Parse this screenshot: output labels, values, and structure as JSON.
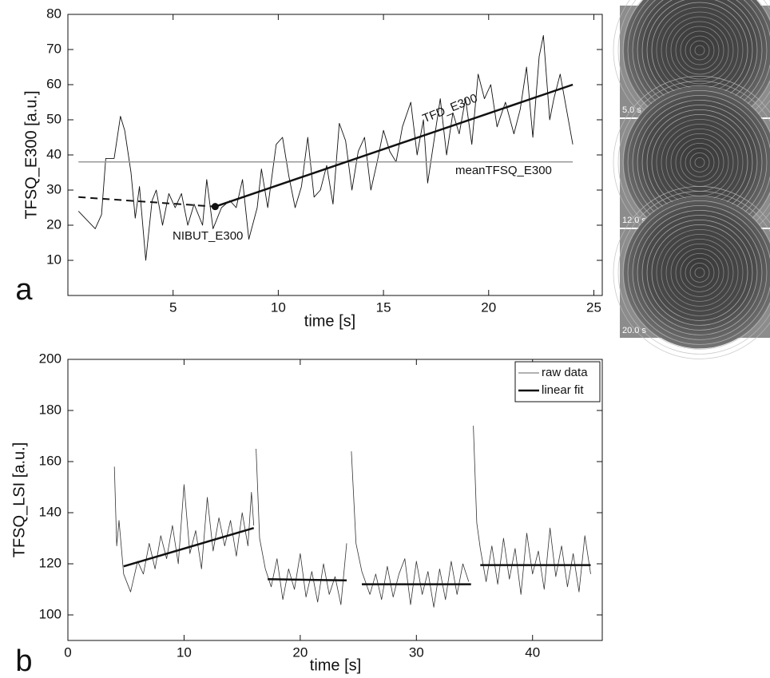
{
  "chart_data": [
    {
      "type": "line",
      "panel": "a",
      "x_label": "time [s]",
      "y_label": "TFSQ_E300 [a.u.]",
      "xlim": [
        0,
        25.4
      ],
      "ylim": [
        0,
        80
      ],
      "xticks": [
        5,
        10,
        15,
        20,
        25
      ],
      "yticks": [
        10,
        20,
        30,
        40,
        50,
        60,
        70,
        80
      ],
      "annotations": [
        "TFD_E300",
        "meanTFSQ_E300",
        "NIBUT_E300"
      ],
      "series": [
        {
          "color": "#111111",
          "width": 0.9,
          "x": [
            0.5,
            1.3,
            1.6,
            1.8,
            2.2,
            2.5,
            2.7,
            3.0,
            3.2,
            3.4,
            3.7,
            4.0,
            4.2,
            4.5,
            4.8,
            5.1,
            5.4,
            5.7,
            6.0,
            6.4,
            6.6,
            6.9,
            7.3,
            7.7,
            8.0,
            8.3,
            8.6,
            9.0,
            9.2,
            9.5,
            9.9,
            10.2,
            10.5,
            10.8,
            11.1,
            11.4,
            11.7,
            12.0,
            12.3,
            12.6,
            12.9,
            13.2,
            13.5,
            13.8,
            14.1,
            14.4,
            14.7,
            15.0,
            15.3,
            15.6,
            15.9,
            16.3,
            16.6,
            16.9,
            17.1,
            17.4,
            17.7,
            18.0,
            18.3,
            18.6,
            18.9,
            19.2,
            19.5,
            19.8,
            20.1,
            20.4,
            20.8,
            21.2,
            21.5,
            21.8,
            22.1,
            22.4,
            22.6,
            22.9,
            23.1,
            23.4,
            23.7,
            24.0
          ],
          "values": [
            24,
            19,
            23,
            39,
            39,
            51,
            47,
            35,
            22,
            31,
            10,
            27,
            30,
            20,
            29,
            25,
            29,
            20,
            26,
            20,
            33,
            19,
            25,
            27,
            25,
            33,
            16,
            25,
            36,
            25,
            43,
            45,
            34,
            25,
            31,
            45,
            28,
            30,
            37,
            26,
            49,
            44,
            30,
            41,
            45,
            30,
            38,
            47,
            41,
            38,
            48,
            55,
            40,
            50,
            32,
            44,
            56,
            40,
            52,
            46,
            56,
            43,
            63,
            56,
            60,
            48,
            55,
            46,
            53,
            65,
            45,
            68,
            74,
            50,
            56,
            63,
            53,
            43
          ]
        },
        {
          "color": "#999999",
          "width": 1.5,
          "x": [
            0.5,
            24
          ],
          "values": [
            38,
            38
          ]
        },
        {
          "color": "#111111",
          "width": 2,
          "dash": true,
          "x": [
            0.5,
            7
          ],
          "values": [
            28,
            25.3
          ]
        },
        {
          "color": "#111111",
          "width": 2.5,
          "x": [
            7,
            24
          ],
          "values": [
            25.3,
            60
          ]
        },
        {
          "color": "#111111",
          "marker": true,
          "x": [
            7
          ],
          "values": [
            25.3
          ]
        }
      ]
    },
    {
      "type": "line",
      "panel": "b",
      "x_label": "time [s]",
      "y_label": "TFSQ_LSI [a.u.]",
      "xlim": [
        0,
        46
      ],
      "ylim": [
        90,
        200
      ],
      "xticks": [
        0,
        10,
        20,
        30,
        40
      ],
      "yticks": [
        100,
        120,
        140,
        160,
        180,
        200
      ],
      "legend": "upper right",
      "series": [
        {
          "name": "raw data",
          "color": "#333333",
          "width": 0.8,
          "x": [
            4,
            4.2,
            4.4,
            4.8,
            5.4,
            6,
            6.5,
            7,
            7.5,
            8,
            8.5,
            9,
            9.5,
            10,
            10.5,
            11,
            11.5,
            12,
            12.5,
            13,
            13.5,
            14,
            14.5,
            15,
            15.5,
            15.8,
            16,
            16.1,
            16.2,
            16.5,
            17,
            17.5,
            18,
            18.5,
            19,
            19.5,
            20,
            20.5,
            21,
            21.5,
            22,
            22.5,
            23,
            23.5,
            24,
            24.2,
            24.4,
            24.8,
            25.3,
            26,
            26.5,
            27,
            27.5,
            28,
            28.5,
            29,
            29.5,
            30,
            30.5,
            31,
            31.5,
            32,
            32.5,
            33,
            33.5,
            34,
            34.5,
            34.7,
            34.9,
            35.2,
            35.5,
            36,
            36.5,
            37,
            37.5,
            38,
            38.5,
            39,
            39.5,
            40,
            40.5,
            41,
            41.5,
            42,
            42.5,
            43,
            43.5,
            44,
            44.5,
            45
          ],
          "values": [
            158,
            127,
            137,
            116,
            109,
            121,
            116,
            128,
            118,
            131,
            122,
            135,
            120,
            151,
            124,
            133,
            118,
            146,
            125,
            138,
            127,
            137,
            123,
            140,
            127,
            148,
            135,
            null,
            165,
            130,
            118,
            111,
            122,
            106,
            118,
            110,
            124,
            107,
            117,
            105,
            120,
            108,
            115,
            104,
            128,
            null,
            164,
            128,
            117,
            108,
            116,
            106,
            119,
            107,
            116,
            122,
            104,
            121,
            108,
            117,
            103,
            118,
            106,
            121,
            108,
            120,
            113,
            null,
            174,
            136,
            126,
            113,
            127,
            112,
            130,
            114,
            126,
            108,
            132,
            116,
            125,
            110,
            134,
            115,
            127,
            111,
            124,
            109,
            131,
            116
          ]
        },
        {
          "name": "linear fit",
          "color": "#111111",
          "width": 2.5,
          "x": [
            4.8,
            16,
            16.6,
            17.2,
            24,
            24.6,
            25.3,
            34.7,
            35.1,
            35.5,
            45
          ],
          "values": [
            119,
            134,
            null,
            114,
            113.5,
            null,
            112,
            112,
            null,
            119.5,
            119.5
          ]
        }
      ]
    }
  ],
  "images": [
    "5.0 s",
    "12.0 s",
    "20.0 s"
  ]
}
